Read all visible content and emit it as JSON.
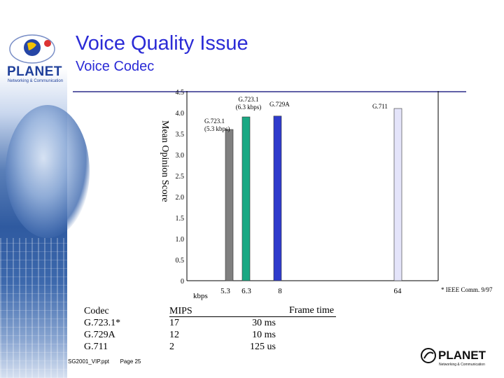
{
  "header": {
    "title": "Voice Quality Issue",
    "subtitle": "Voice Codec"
  },
  "branding": {
    "logo_text": "PLANET",
    "logo_subtext": "Networking & Communication"
  },
  "chart_data": {
    "type": "bar",
    "ylabel": "Mean Opinion Score",
    "xlabel": "kbps",
    "y_tick_labels": [
      "0",
      "0.5",
      "1.0",
      "1.5",
      "2.0",
      "2.5",
      "3.0",
      "3.5",
      "4.0",
      "4.5"
    ],
    "ylim": [
      0,
      4.5
    ],
    "x_tick_labels": [
      "5.3",
      "6.3",
      "8",
      "64"
    ],
    "bars": [
      {
        "label": "G.723.1 (5.3 kbps)",
        "label_lines": [
          "G.723.1",
          "(5.3 kbps)"
        ],
        "x": "5.3",
        "value": 3.6,
        "color": "#808080"
      },
      {
        "label": "G.723.1 (6.3 kbps)",
        "label_lines": [
          "G.723.1",
          "(6.3 kbps)"
        ],
        "x": "6.3",
        "value": 3.9,
        "color": "#1aa883"
      },
      {
        "label": "G.729A",
        "label_lines": [
          "G.729A"
        ],
        "x": "8",
        "value": 3.92,
        "color": "#2f3bcc"
      },
      {
        "label": "G.711",
        "label_lines": [
          "G.711"
        ],
        "x": "64",
        "value": 4.1,
        "color": "#e4e4fa"
      }
    ],
    "source_note": "* IEEE Comm. 9/97",
    "grid": false
  },
  "table": {
    "headers": [
      "Codec",
      "MIPS",
      "Frame time"
    ],
    "rows": [
      {
        "codec": "G.723.1*",
        "mips": "17",
        "frame": "30 ms"
      },
      {
        "codec": "G.729A",
        "mips": "12",
        "frame": "10 ms"
      },
      {
        "codec": "G.711",
        "mips": "2",
        "frame": "125 us"
      }
    ]
  },
  "footer": {
    "file": "SG2001_VIP.ppt",
    "page": "Page 25"
  }
}
